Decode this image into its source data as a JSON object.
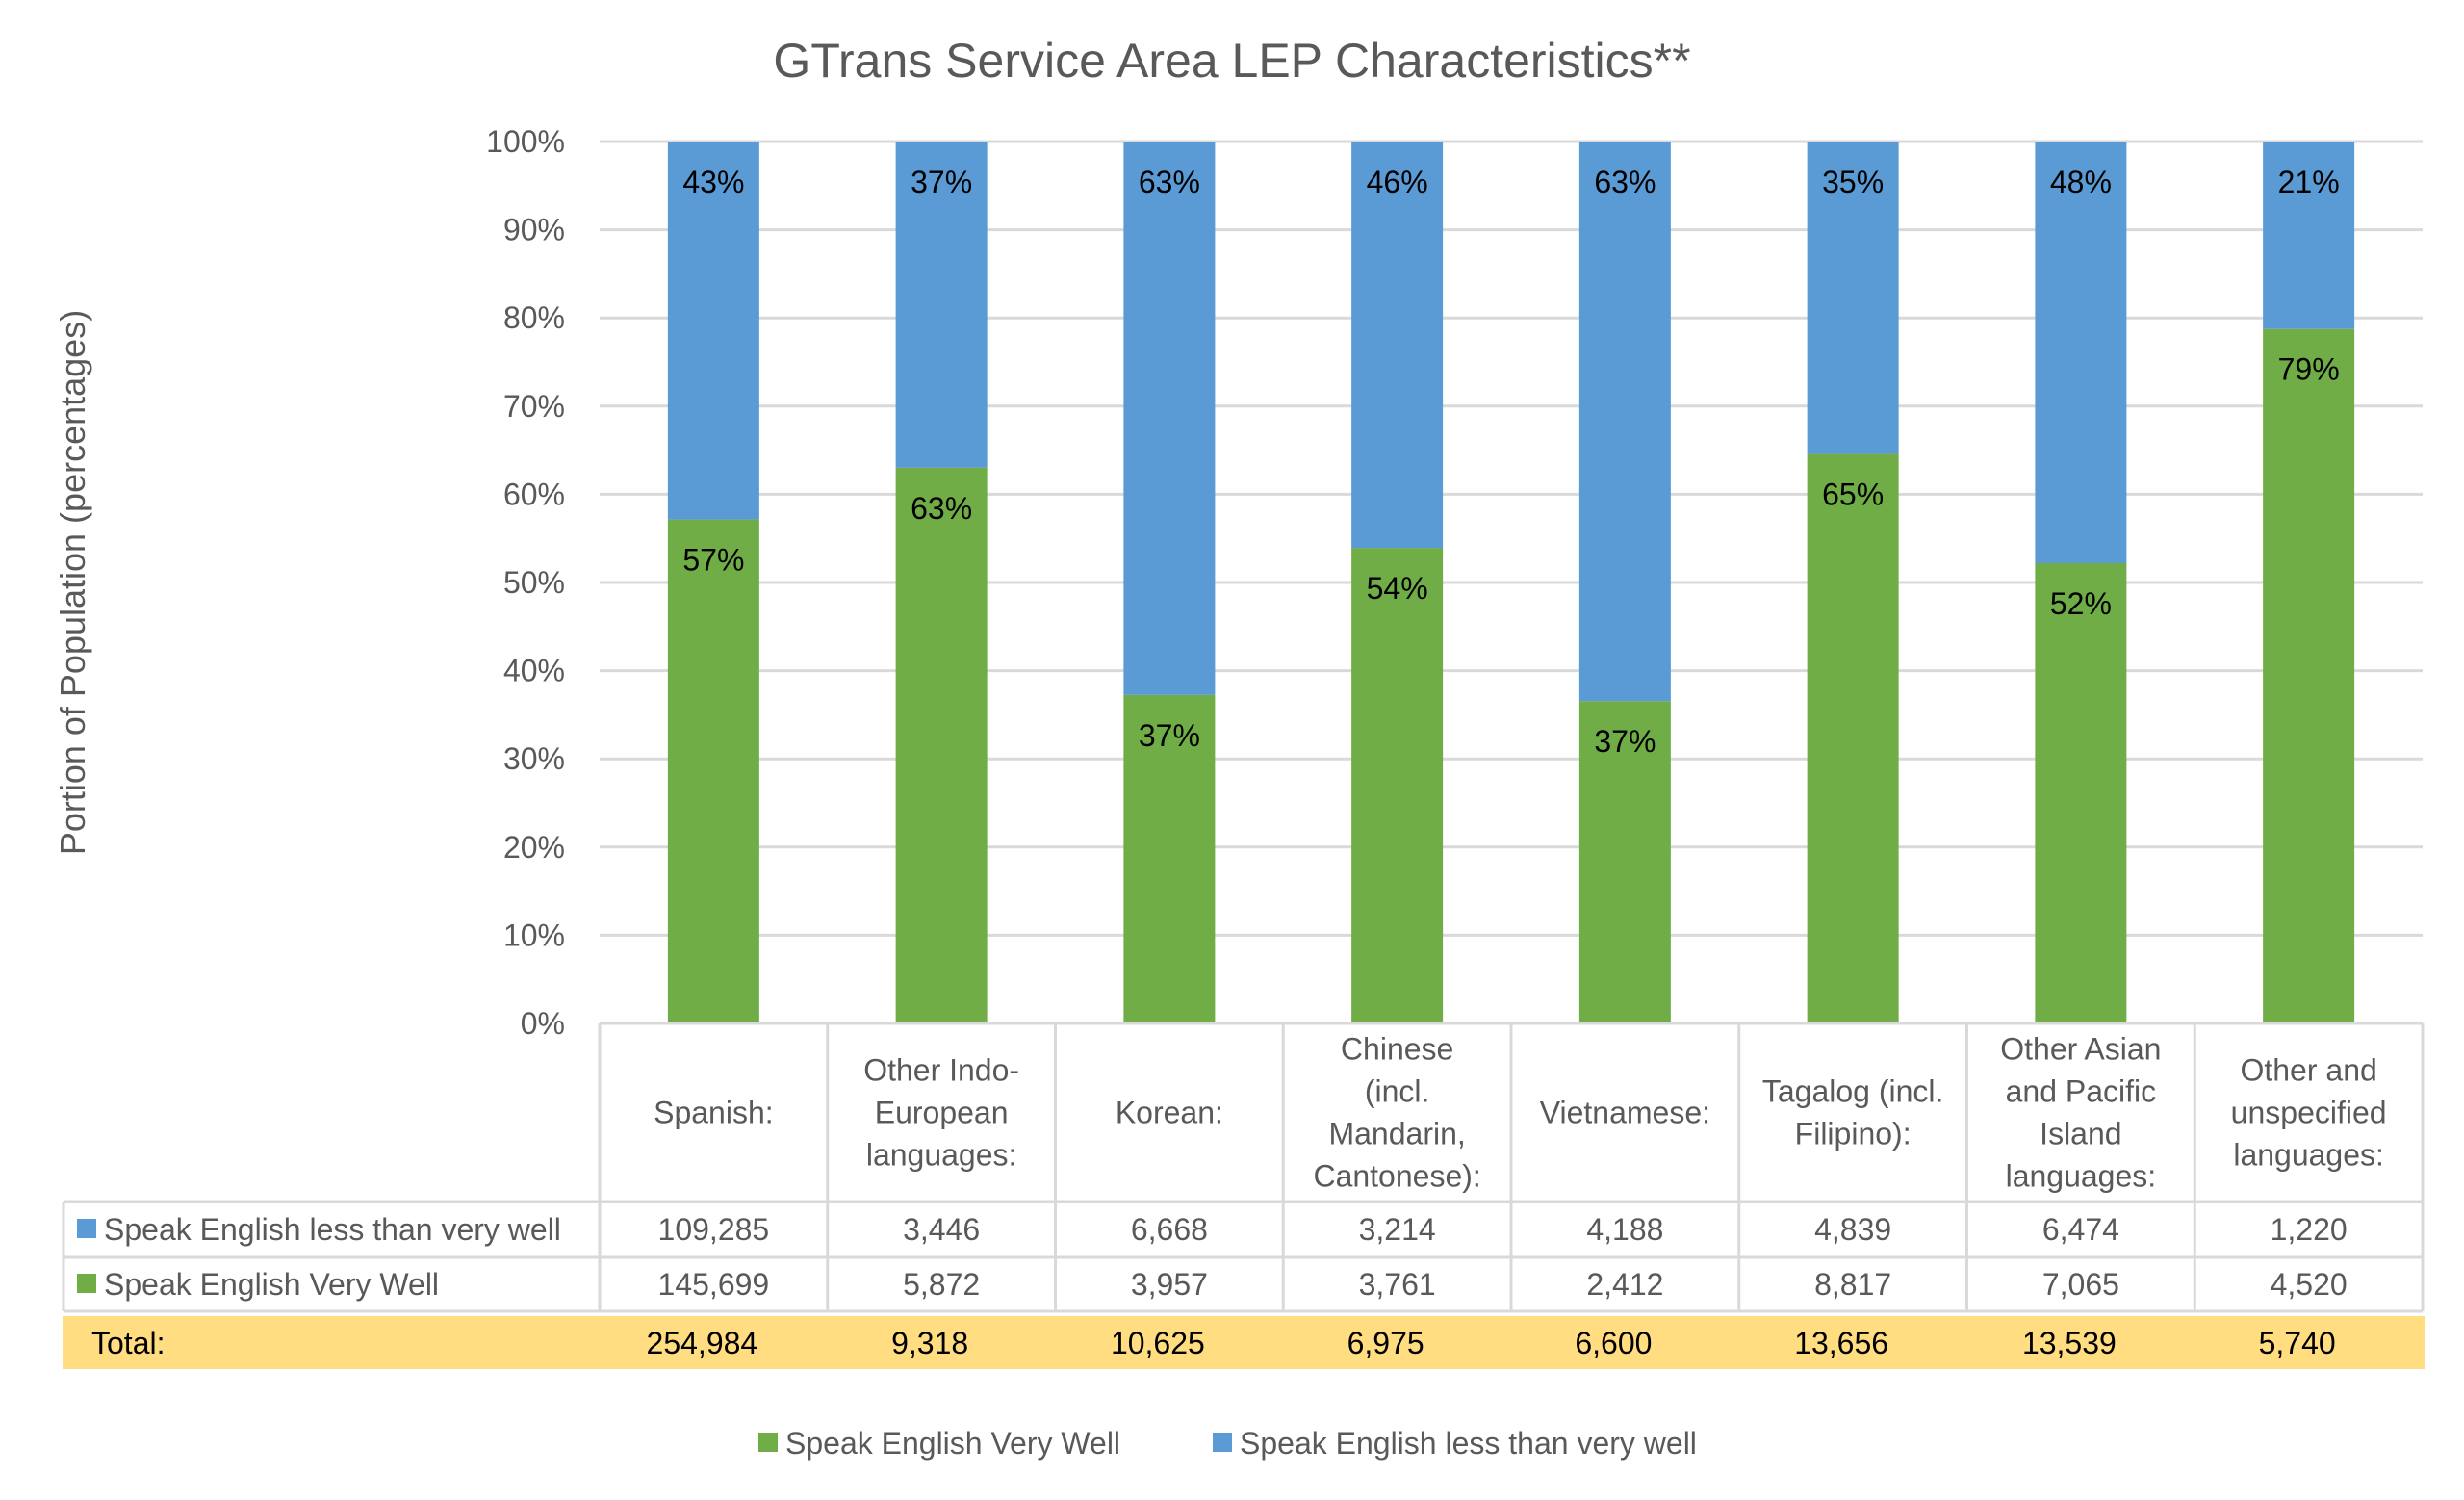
{
  "chart_data": {
    "type": "bar",
    "stacked": "percent",
    "title": "GTrans Service Area LEP Characteristics**",
    "xlabel": "",
    "ylabel": "Portion of Population (percentages)",
    "ylim": [
      0,
      100
    ],
    "yticks": [
      "0%",
      "10%",
      "20%",
      "30%",
      "40%",
      "50%",
      "60%",
      "70%",
      "80%",
      "90%",
      "100%"
    ],
    "grid": true,
    "categories": [
      [
        "Spanish:"
      ],
      [
        "Other Indo-",
        "European",
        "languages:"
      ],
      [
        "Korean:"
      ],
      [
        "Chinese",
        "(incl.",
        "Mandarin,",
        "Cantonese):"
      ],
      [
        "Vietnamese:"
      ],
      [
        "Tagalog (incl.",
        "Filipino):"
      ],
      [
        "Other Asian",
        "and Pacific",
        "Island",
        "languages:"
      ],
      [
        "Other and",
        "unspecified",
        "languages:"
      ]
    ],
    "series": [
      {
        "name": "Speak English Very Well",
        "color": "#70AD47",
        "values": [
          145699,
          5872,
          3957,
          3761,
          2412,
          8817,
          7065,
          4520
        ],
        "percent_labels": [
          "57%",
          "63%",
          "37%",
          "54%",
          "37%",
          "65%",
          "52%",
          "79%"
        ]
      },
      {
        "name": "Speak English less than very well",
        "color": "#5B9BD5",
        "values": [
          109285,
          3446,
          6668,
          3214,
          4188,
          4839,
          6474,
          1220
        ],
        "percent_labels": [
          "43%",
          "37%",
          "63%",
          "46%",
          "63%",
          "35%",
          "48%",
          "21%"
        ]
      }
    ],
    "data_table": {
      "rows": [
        {
          "label": "Speak English less than very well",
          "color": "#5B9BD5",
          "cells": [
            "109,285",
            "3,446",
            "6,668",
            "3,214",
            "4,188",
            "4,839",
            "6,474",
            "1,220"
          ]
        },
        {
          "label": "Speak English Very Well",
          "color": "#70AD47",
          "cells": [
            "145,699",
            "5,872",
            "3,957",
            "3,761",
            "2,412",
            "8,817",
            "7,065",
            "4,520"
          ]
        }
      ],
      "total": {
        "label": "Total:",
        "color": "#FFDD80",
        "cells": [
          "254,984",
          "9,318",
          "10,625",
          "6,975",
          "6,600",
          "13,656",
          "13,539",
          "5,740"
        ]
      }
    },
    "legend": {
      "position": "bottom",
      "items": [
        {
          "label": "Speak English Very Well",
          "color": "#70AD47"
        },
        {
          "label": "Speak English less than very well",
          "color": "#5B9BD5"
        }
      ]
    }
  }
}
